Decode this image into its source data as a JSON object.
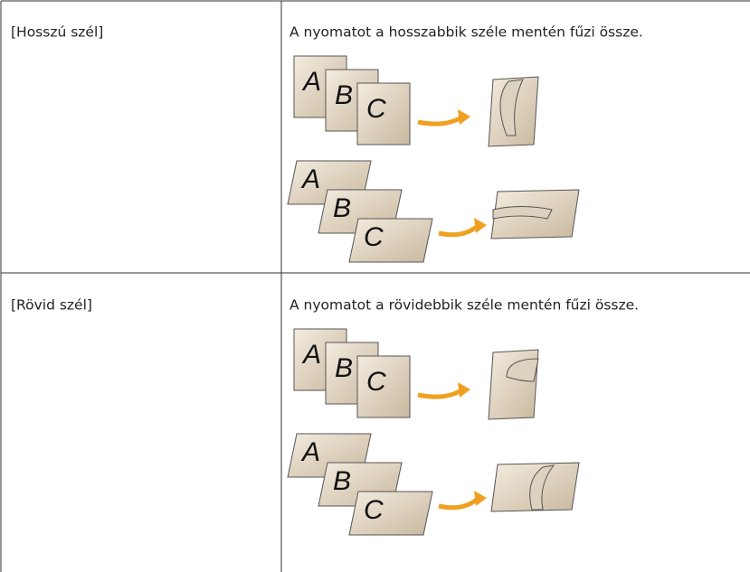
{
  "table": {
    "rows": [
      {
        "label": "[Hosszú szél]",
        "description": "A nyomatot a hosszabbik széle mentén fűzi össze.",
        "figures": [
          {
            "pages": [
              "A",
              "B",
              "C"
            ]
          },
          {
            "pages": [
              "A",
              "B",
              "C"
            ]
          }
        ]
      },
      {
        "label": "[Rövid szél]",
        "description": "A nyomatot a rövidebbik széle mentén fűzi össze.",
        "figures": [
          {
            "pages": [
              "A",
              "B",
              "C"
            ]
          },
          {
            "pages": [
              "A",
              "B",
              "C"
            ]
          }
        ]
      }
    ]
  }
}
